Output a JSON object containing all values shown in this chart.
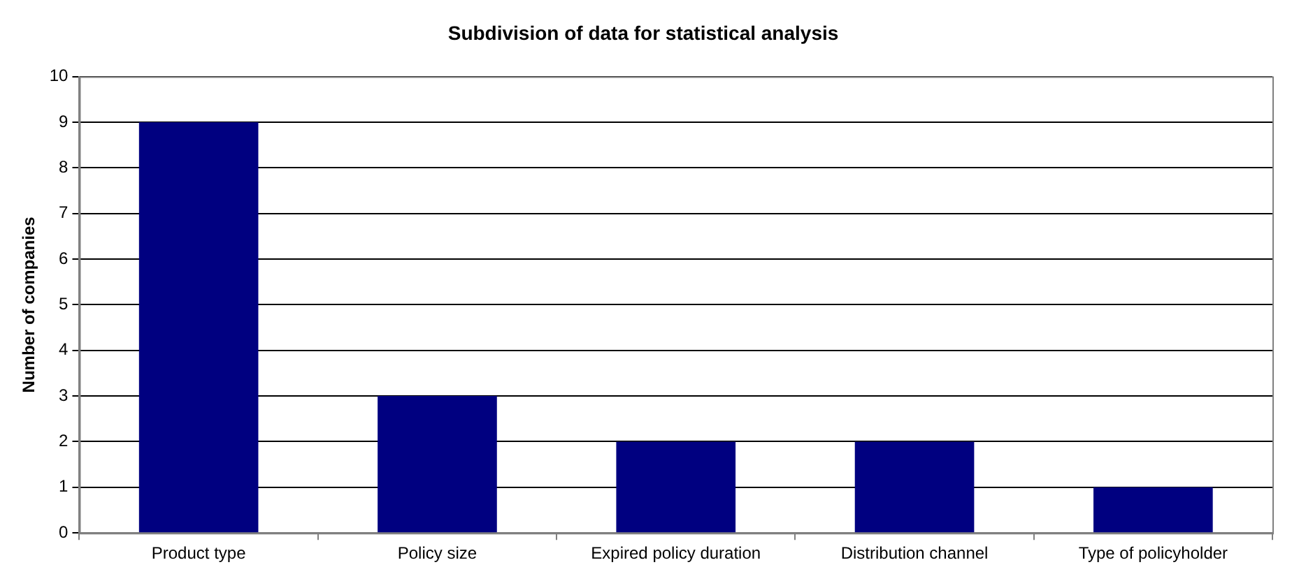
{
  "chart_data": {
    "type": "bar",
    "title": "Subdivision of data for statistical analysis",
    "ylabel": "Number of companies",
    "categories": [
      "Product type",
      "Policy size",
      "Expired policy duration",
      "Distribution channel",
      "Type of policyholder"
    ],
    "values": [
      9,
      3,
      2,
      2,
      1
    ],
    "color": "#000080",
    "ylim": [
      0,
      10
    ],
    "yticks": [
      0,
      1,
      2,
      3,
      4,
      5,
      6,
      7,
      8,
      9,
      10
    ],
    "grid": "y"
  }
}
